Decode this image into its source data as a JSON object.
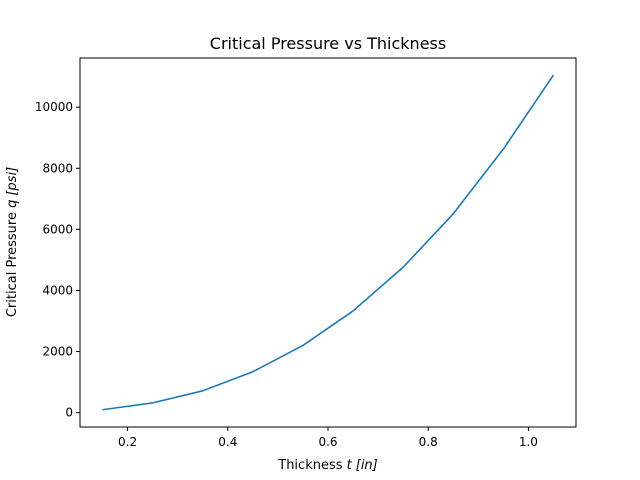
{
  "chart_data": {
    "type": "line",
    "title": "Critical Pressure vs Thickness",
    "xlabel_main": "Thickness ",
    "xlabel_var": "t",
    "xlabel_unit": "[in]",
    "ylabel_main": "Critical Pressure ",
    "ylabel_var": "q",
    "ylabel_unit": "[psi]",
    "xlim": [
      0.105,
      1.095
    ],
    "ylim": [
      -470,
      11610
    ],
    "xticks": [
      0.2,
      0.4,
      0.6,
      0.8,
      1.0
    ],
    "xtick_labels": [
      "0.2",
      "0.4",
      "0.6",
      "0.8",
      "1.0"
    ],
    "yticks": [
      0,
      2000,
      4000,
      6000,
      8000,
      10000
    ],
    "ytick_labels": [
      "0",
      "2000",
      "4000",
      "6000",
      "8000",
      "10000"
    ],
    "grid": false,
    "series": [
      {
        "color": "#1f77b4",
        "x": [
          0.15,
          0.25,
          0.35,
          0.45,
          0.55,
          0.65,
          0.75,
          0.85,
          0.95,
          1.05
        ],
        "y": [
          95,
          320,
          715,
          1340,
          2200,
          3330,
          4760,
          6510,
          8630,
          11050
        ]
      }
    ]
  }
}
